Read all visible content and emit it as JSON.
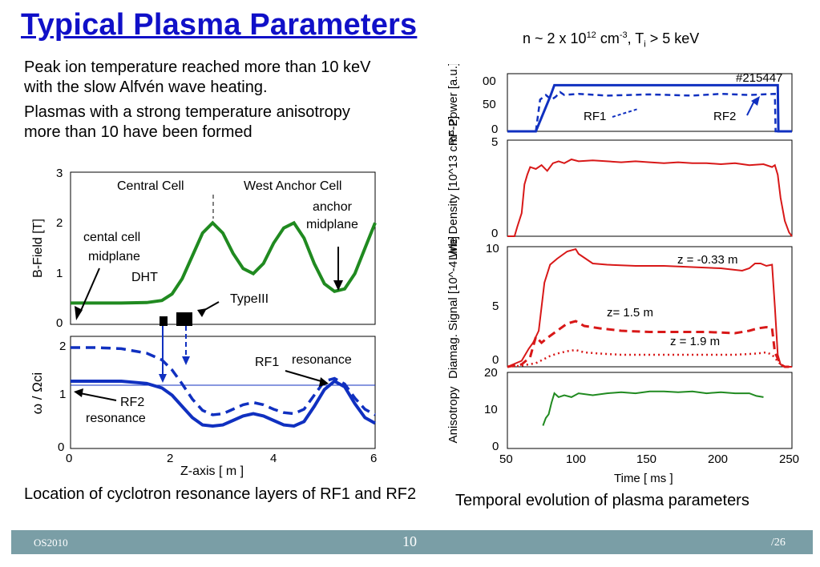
{
  "slide": {
    "title": "Typical Plasma Parameters",
    "conditions": {
      "n_prefix": "n ~ 2 x 10",
      "n_exp": "12",
      "n_unit": " cm",
      "n_unit_exp": "-3",
      "t_prefix": ",  T",
      "t_sub": "i",
      "t_suffix": " > 5 keV"
    },
    "paragraph_1": [
      "Peak ion temperature reached more than 10 keV",
      "with the slow Alfvén wave heating."
    ],
    "paragraph_2": [
      "Plasmas with a strong temperature anisotropy",
      "more than 10 have been formed"
    ],
    "caption_left": "Location of cyclotron resonance layers of RF1 and RF2",
    "caption_right": "Temporal evolution of plasma parameters",
    "footer": {
      "left": "OS2010",
      "page": "10",
      "total": "/26"
    },
    "colors": {
      "title": "#1010c8",
      "green": "#208a20",
      "blue": "#1030c0",
      "red": "#d81818",
      "footer": "#7a9ea6"
    }
  },
  "chart_data": [
    {
      "type": "line",
      "id": "bfield",
      "ylabel": "B-Field [T]",
      "ylim": [
        0,
        3
      ],
      "xlim": [
        0,
        6
      ],
      "yticks": [
        "0",
        "1",
        "2",
        "3"
      ],
      "annotations": {
        "central": "Central Cell",
        "west": "West Anchor Cell",
        "anchor1": "anchor",
        "anchor2": "midplane",
        "cmid1": "cental cell",
        "cmid2": "midplane",
        "dht": "DHT",
        "type3": "TypeIII"
      },
      "series": [
        {
          "x": [
            0,
            0.5,
            1,
            1.5,
            1.8,
            2.0,
            2.2,
            2.4,
            2.6,
            2.8,
            3.0,
            3.2,
            3.4,
            3.6,
            3.8,
            4.0,
            4.2,
            4.4,
            4.6,
            4.8,
            5.0,
            5.2,
            5.4,
            5.6,
            5.8,
            6.0
          ],
          "y": [
            0.42,
            0.42,
            0.42,
            0.43,
            0.47,
            0.6,
            0.9,
            1.35,
            1.8,
            2.0,
            1.8,
            1.4,
            1.1,
            1.0,
            1.2,
            1.6,
            1.9,
            2.0,
            1.7,
            1.2,
            0.8,
            0.65,
            0.7,
            1.0,
            1.5,
            2.0
          ]
        }
      ]
    },
    {
      "type": "line",
      "id": "resonance",
      "xlabel": "Z-axis   [ m ]",
      "ylabel": "ω / Ωci",
      "ylim": [
        0,
        2
      ],
      "xlim": [
        0,
        6
      ],
      "xticks": [
        "0",
        "2",
        "4",
        "6"
      ],
      "yticks": [
        "0",
        "1",
        "2"
      ],
      "annotations": {
        "rf1": "RF1",
        "res": "resonance",
        "rf2": "RF2",
        "rf2res": "resonance"
      },
      "series": [
        {
          "name": "RF2",
          "x": [
            0,
            0.5,
            1,
            1.5,
            1.8,
            2.0,
            2.2,
            2.4,
            2.6,
            2.8,
            3.0,
            3.2,
            3.4,
            3.6,
            3.8,
            4.0,
            4.2,
            4.4,
            4.6,
            4.8,
            5.0,
            5.2,
            5.4,
            5.6,
            5.8,
            6.0
          ],
          "y": [
            1.2,
            1.2,
            1.2,
            1.16,
            1.08,
            0.95,
            0.75,
            0.55,
            0.42,
            0.4,
            0.42,
            0.5,
            0.58,
            0.62,
            0.58,
            0.5,
            0.42,
            0.4,
            0.48,
            0.75,
            1.05,
            1.2,
            1.1,
            0.8,
            0.55,
            0.45
          ]
        },
        {
          "name": "RF1",
          "x": [
            0,
            0.5,
            1,
            1.5,
            1.8,
            2.0,
            2.2,
            2.4,
            2.6,
            2.8,
            3.0,
            3.2,
            3.4,
            3.6,
            3.8,
            4.0,
            4.2,
            4.4,
            4.6,
            4.8,
            5.0,
            5.2,
            5.4,
            5.6,
            5.8,
            6.0
          ],
          "y": [
            1.8,
            1.8,
            1.78,
            1.7,
            1.58,
            1.4,
            1.15,
            0.88,
            0.68,
            0.6,
            0.62,
            0.7,
            0.78,
            0.82,
            0.78,
            0.7,
            0.64,
            0.62,
            0.7,
            0.95,
            1.2,
            1.25,
            1.15,
            0.9,
            0.7,
            0.6
          ]
        }
      ]
    },
    {
      "type": "line",
      "id": "rfpower",
      "ylabel": "RF Power [a.u.]",
      "shot": "#215447",
      "yticks": [
        "0",
        "50",
        "00"
      ],
      "ylim": [
        0,
        100
      ],
      "xlim": [
        50,
        250
      ],
      "labels": {
        "rf1": "RF1",
        "rf2": "RF2"
      },
      "series": [
        {
          "name": "RF2",
          "x": [
            50,
            70,
            80,
            83,
            240,
            240.5,
            250
          ],
          "y": [
            0,
            0,
            60,
            80,
            80,
            0,
            0
          ]
        },
        {
          "name": "RF1",
          "x": [
            50,
            70,
            73,
            77,
            81,
            84,
            87,
            90,
            100,
            120,
            150,
            180,
            200,
            220,
            238,
            238.5,
            250
          ],
          "y": [
            0,
            0,
            55,
            63,
            55,
            60,
            68,
            63,
            65,
            62,
            64,
            62,
            65,
            63,
            65,
            0,
            0
          ]
        }
      ]
    },
    {
      "type": "line",
      "id": "density",
      "ylabel": "Line Density [10^13 cm^-2]",
      "yticks": [
        "0",
        "5"
      ],
      "ylim": [
        0,
        5
      ],
      "xlim": [
        50,
        250
      ],
      "series": [
        {
          "x": [
            50,
            55,
            57,
            60,
            62,
            64,
            66,
            70,
            74,
            78,
            82,
            86,
            90,
            95,
            100,
            110,
            120,
            130,
            140,
            150,
            160,
            170,
            180,
            190,
            200,
            210,
            220,
            230,
            236,
            238,
            240,
            242,
            245,
            248,
            250
          ],
          "y": [
            0,
            0,
            0.5,
            1.2,
            2.7,
            3.2,
            3.6,
            3.5,
            3.7,
            3.4,
            3.8,
            3.9,
            3.8,
            4.0,
            3.9,
            3.95,
            3.9,
            3.85,
            3.9,
            3.85,
            3.8,
            3.85,
            3.8,
            3.8,
            3.75,
            3.8,
            3.7,
            3.75,
            3.6,
            3.7,
            3.2,
            2.0,
            0.8,
            0.2,
            0
          ]
        }
      ]
    },
    {
      "type": "line",
      "id": "diamag",
      "ylabel": "Diamag. Signal [10^-4 Wb]",
      "yticks": [
        "0",
        "5",
        "10"
      ],
      "ylim": [
        0,
        10
      ],
      "xlim": [
        50,
        250
      ],
      "labels": {
        "z1": "z = -0.33 m",
        "z2": "z= 1.5 m",
        "z3": "z = 1.9 m"
      },
      "series": [
        {
          "name": "z = -0.33 m",
          "x": [
            50,
            60,
            65,
            68,
            72,
            76,
            80,
            85,
            92,
            98,
            100,
            110,
            120,
            140,
            160,
            180,
            200,
            215,
            220,
            224,
            228,
            232,
            236,
            238,
            240,
            242,
            245,
            250
          ],
          "y": [
            0,
            0.5,
            1.5,
            2.0,
            3.0,
            7.0,
            8.5,
            9.0,
            9.6,
            9.8,
            9.4,
            8.6,
            8.5,
            8.4,
            8.4,
            8.3,
            8.2,
            8.0,
            8.2,
            8.6,
            8.6,
            8.4,
            8.5,
            5.0,
            1.0,
            0.2,
            0,
            0
          ]
        },
        {
          "name": "z= 1.5 m",
          "x": [
            50,
            60,
            66,
            70,
            74,
            78,
            85,
            92,
            98,
            104,
            115,
            130,
            150,
            170,
            190,
            210,
            220,
            226,
            232,
            236,
            238,
            242,
            245,
            250
          ],
          "y": [
            0,
            0.2,
            0.8,
            2.5,
            2.0,
            2.4,
            3.0,
            3.6,
            3.8,
            3.4,
            3.2,
            3.0,
            2.9,
            2.9,
            2.9,
            2.8,
            3.0,
            3.2,
            3.3,
            3.2,
            1.2,
            0.2,
            0,
            0
          ]
        },
        {
          "name": "z = 1.9 m",
          "x": [
            50,
            60,
            70,
            75,
            80,
            85,
            92,
            98,
            104,
            115,
            130,
            150,
            170,
            190,
            210,
            225,
            232,
            236,
            239,
            242,
            245,
            250
          ],
          "y": [
            0,
            0.1,
            0.3,
            0.6,
            0.9,
            1.1,
            1.3,
            1.4,
            1.2,
            1.1,
            1.0,
            1.0,
            1.0,
            1.0,
            1.0,
            1.1,
            1.2,
            1.0,
            0.6,
            0.2,
            0,
            0
          ]
        }
      ]
    },
    {
      "type": "line",
      "id": "anisotropy",
      "ylabel": "Anisotropy",
      "xlabel": "Time   [ ms ]",
      "yticks": [
        "0",
        "10",
        "20"
      ],
      "xticks": [
        "50",
        "100",
        "150",
        "200",
        "250"
      ],
      "ylim": [
        0,
        20
      ],
      "xlim": [
        50,
        250
      ],
      "series": [
        {
          "x": [
            75,
            77,
            79,
            81,
            83,
            86,
            90,
            95,
            100,
            110,
            120,
            130,
            140,
            150,
            160,
            170,
            180,
            190,
            200,
            210,
            220,
            225,
            230
          ],
          "y": [
            6,
            8,
            9,
            12,
            14.5,
            13.5,
            14,
            13.5,
            14.5,
            14,
            14.5,
            14.8,
            14.5,
            15,
            15,
            14.8,
            15,
            14.5,
            14.8,
            14.5,
            14.5,
            13.8,
            13.5
          ]
        }
      ]
    }
  ]
}
